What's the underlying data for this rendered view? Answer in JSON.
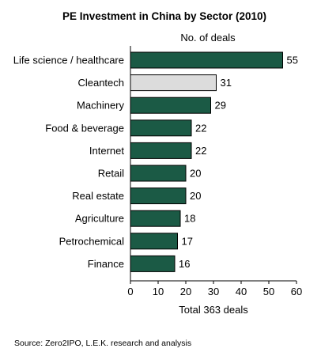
{
  "chart_data": {
    "type": "bar",
    "orientation": "horizontal",
    "title": "PE Investment in China by Sector (2010)",
    "subtitle": "No. of deals",
    "categories": [
      "Life science / healthcare",
      "Cleantech",
      "Machinery",
      "Food & beverage",
      "Internet",
      "Retail",
      "Real estate",
      "Agriculture",
      "Petrochemical",
      "Finance"
    ],
    "values": [
      55,
      31,
      29,
      22,
      22,
      20,
      20,
      18,
      17,
      16
    ],
    "bar_colors": [
      "#1b5a45",
      "#dcdcdc",
      "#1b5a45",
      "#1b5a45",
      "#1b5a45",
      "#1b5a45",
      "#1b5a45",
      "#1b5a45",
      "#1b5a45",
      "#1b5a45"
    ],
    "xlim": [
      0,
      60
    ],
    "xticks": [
      0,
      10,
      20,
      30,
      40,
      50,
      60
    ],
    "xlabel": "Total 363 deals",
    "grid": false,
    "source": "Source: Zero2IPO, L.E.K. research and analysis"
  }
}
